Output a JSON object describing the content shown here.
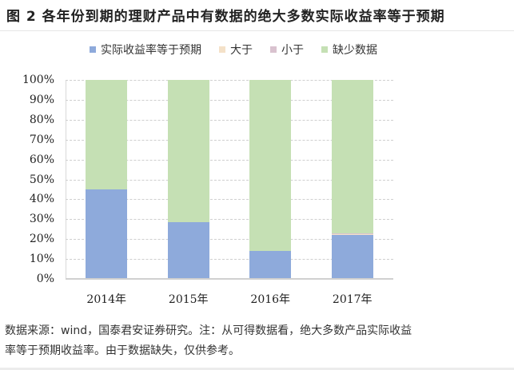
{
  "title": "图 2 各年份到期的理财产品中有数据的绝大多数实际收益率等于预期",
  "legend": [
    {
      "label": "实际收益率等于预期",
      "color": "#8eaadb"
    },
    {
      "label": "大于",
      "color": "#f4e1c8"
    },
    {
      "label": "小于",
      "color": "#d9c2cf"
    },
    {
      "label": "缺少数据",
      "color": "#c5e0b4"
    }
  ],
  "yticks": [
    "100%",
    "90%",
    "80%",
    "70%",
    "60%",
    "50%",
    "40%",
    "30%",
    "20%",
    "10%",
    "0%"
  ],
  "xticks": [
    "2014年",
    "2015年",
    "2016年",
    "2017年"
  ],
  "footer": {
    "line1": "数据来源：wind，国泰君安证券研究。注：从可得数据看，绝大多数产品实际收益",
    "line2": "率等于预期收益率。由于数据缺失，仅供参考。"
  },
  "chart_data": {
    "type": "bar",
    "stacked": true,
    "percent_stacked": true,
    "title": "图 2 各年份到期的理财产品中有数据的绝大多数实际收益率等于预期",
    "categories": [
      "2014年",
      "2015年",
      "2016年",
      "2017年"
    ],
    "series": [
      {
        "name": "实际收益率等于预期",
        "color": "#8eaadb",
        "values": [
          45,
          28.5,
          14,
          22
        ]
      },
      {
        "name": "大于",
        "color": "#f4e1c8",
        "values": [
          0,
          0,
          0,
          0.5
        ]
      },
      {
        "name": "小于",
        "color": "#d9c2cf",
        "values": [
          0,
          0,
          0,
          0.3
        ]
      },
      {
        "name": "缺少数据",
        "color": "#c5e0b4",
        "values": [
          55,
          71.5,
          86,
          77.2
        ]
      }
    ],
    "xlabel": "",
    "ylabel": "",
    "ylim": [
      0,
      100
    ],
    "yticks": [
      "0%",
      "10%",
      "20%",
      "30%",
      "40%",
      "50%",
      "60%",
      "70%",
      "80%",
      "90%",
      "100%"
    ],
    "grid": "horizontal dashed",
    "legend_position": "top",
    "source_note": "数据来源：wind，国泰君安证券研究。注：从可得数据看，绝大多数产品实际收益率等于预期收益率。由于数据缺失，仅供参考。"
  }
}
